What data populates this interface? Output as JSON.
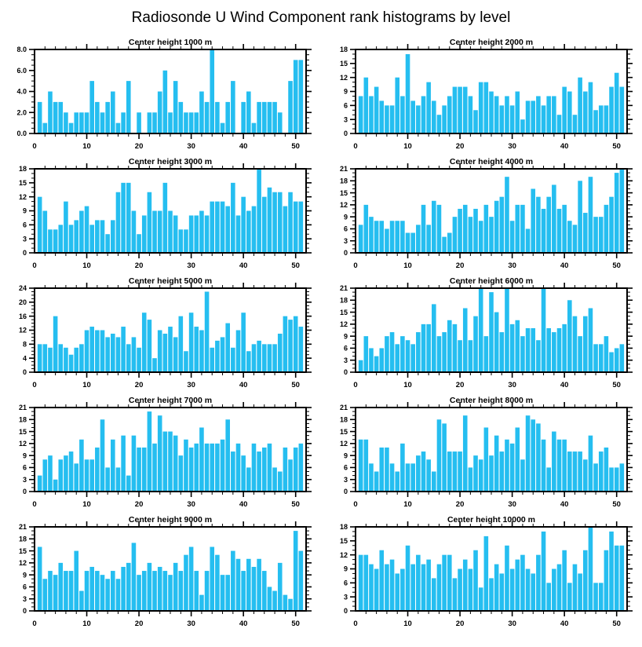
{
  "title": "Radiosonde U Wind Component rank histograms by level",
  "colors": {
    "bar": "#25BEF0",
    "axis": "#000000",
    "background": "#FFFFFF",
    "text": "#000000"
  },
  "axis": {
    "x_range": [
      0,
      52
    ],
    "x_major_ticks": [
      0,
      10,
      20,
      30,
      40,
      50
    ],
    "x_minor_step": 2,
    "rank_start": 1
  },
  "chart_data": [
    {
      "type": "bar",
      "title": "Center height 1000 m",
      "ylim": [
        0,
        8
      ],
      "y_major_step": 2,
      "y_minor_step": 0.5,
      "y_label_decimals": 1,
      "values": [
        3,
        1,
        4,
        3,
        3,
        2,
        1,
        2,
        2,
        2,
        5,
        3,
        2,
        3,
        4,
        1,
        2,
        5,
        0,
        2,
        0,
        2,
        2,
        4,
        6,
        2,
        5,
        3,
        2,
        2,
        2,
        4,
        3,
        8,
        3,
        1,
        3,
        5,
        0,
        3,
        4,
        1,
        3,
        3,
        3,
        3,
        2,
        0,
        5,
        7,
        7
      ]
    },
    {
      "type": "bar",
      "title": "Center height 2000 m",
      "ylim": [
        0,
        18
      ],
      "y_major_step": 3,
      "y_minor_step": 1,
      "y_label_decimals": 0,
      "values": [
        8,
        12,
        8,
        10,
        7,
        6,
        6,
        12,
        8,
        17,
        7,
        6,
        8,
        11,
        7,
        4,
        6,
        8,
        10,
        10,
        10,
        8,
        5,
        11,
        11,
        9,
        8,
        6,
        8,
        6,
        9,
        3,
        7,
        7,
        8,
        6,
        8,
        8,
        4,
        10,
        9,
        4,
        12,
        9,
        11,
        5,
        6,
        6,
        10,
        13,
        10
      ]
    },
    {
      "type": "bar",
      "title": "Center height 3000 m",
      "ylim": [
        0,
        18
      ],
      "y_major_step": 3,
      "y_minor_step": 1,
      "y_label_decimals": 0,
      "values": [
        12,
        9,
        5,
        5,
        6,
        11,
        6,
        7,
        9,
        10,
        6,
        7,
        7,
        4,
        7,
        13,
        15,
        15,
        9,
        4,
        8,
        13,
        9,
        9,
        15,
        9,
        8,
        5,
        5,
        8,
        8,
        9,
        8,
        11,
        11,
        11,
        10,
        15,
        8,
        12,
        9,
        10,
        18,
        12,
        14,
        13,
        13,
        10,
        13,
        11,
        11
      ]
    },
    {
      "type": "bar",
      "title": "Center height 4000 m",
      "ylim": [
        0,
        21
      ],
      "y_major_step": 3,
      "y_minor_step": 1,
      "y_label_decimals": 0,
      "values": [
        7,
        12,
        9,
        8,
        8,
        6,
        8,
        8,
        8,
        5,
        5,
        7,
        12,
        7,
        13,
        12,
        4,
        5,
        9,
        11,
        12,
        9,
        11,
        8,
        12,
        9,
        13,
        14,
        19,
        8,
        12,
        12,
        6,
        16,
        14,
        11,
        14,
        17,
        11,
        12,
        8,
        7,
        18,
        10,
        19,
        9,
        9,
        12,
        14,
        20,
        21
      ]
    },
    {
      "type": "bar",
      "title": "Center height 5000 m",
      "ylim": [
        0,
        24
      ],
      "y_major_step": 4,
      "y_minor_step": 1,
      "y_label_decimals": 0,
      "values": [
        8,
        8,
        7,
        16,
        8,
        7,
        5,
        7,
        8,
        12,
        13,
        12,
        12,
        10,
        11,
        10,
        13,
        8,
        10,
        7,
        17,
        15,
        4,
        12,
        11,
        13,
        10,
        16,
        6,
        17,
        13,
        12,
        23,
        7,
        9,
        10,
        14,
        7,
        12,
        17,
        6,
        8,
        9,
        8,
        8,
        8,
        11,
        16,
        15,
        16,
        13
      ]
    },
    {
      "type": "bar",
      "title": "Center height 6000 m",
      "ylim": [
        0,
        21
      ],
      "y_major_step": 3,
      "y_minor_step": 1,
      "y_label_decimals": 0,
      "values": [
        3,
        9,
        6,
        4,
        6,
        9,
        10,
        7,
        9,
        8,
        7,
        10,
        12,
        12,
        17,
        9,
        10,
        13,
        12,
        8,
        16,
        8,
        14,
        21,
        9,
        20,
        15,
        10,
        21,
        12,
        13,
        9,
        11,
        11,
        8,
        21,
        11,
        10,
        11,
        12,
        18,
        14,
        9,
        14,
        16,
        7,
        7,
        9,
        5,
        6,
        7
      ]
    },
    {
      "type": "bar",
      "title": "Center height 7000 m",
      "ylim": [
        0,
        21
      ],
      "y_major_step": 3,
      "y_minor_step": 1,
      "y_label_decimals": 0,
      "values": [
        4,
        8,
        9,
        3,
        8,
        9,
        10,
        7,
        13,
        8,
        8,
        11,
        18,
        6,
        13,
        6,
        14,
        4,
        14,
        11,
        11,
        20,
        12,
        19,
        15,
        15,
        14,
        9,
        13,
        11,
        12,
        16,
        12,
        12,
        12,
        13,
        18,
        10,
        12,
        9,
        6,
        12,
        10,
        11,
        12,
        6,
        5,
        11,
        8,
        11,
        12
      ]
    },
    {
      "type": "bar",
      "title": "Center height 8000 m",
      "ylim": [
        0,
        21
      ],
      "y_major_step": 3,
      "y_minor_step": 1,
      "y_label_decimals": 0,
      "values": [
        13,
        13,
        7,
        5,
        11,
        11,
        7,
        5,
        12,
        7,
        7,
        9,
        10,
        8,
        5,
        18,
        17,
        10,
        10,
        10,
        19,
        6,
        9,
        8,
        16,
        9,
        14,
        10,
        13,
        12,
        16,
        8,
        19,
        18,
        17,
        13,
        6,
        15,
        13,
        13,
        10,
        10,
        10,
        8,
        14,
        7,
        10,
        11,
        6,
        6,
        7
      ]
    },
    {
      "type": "bar",
      "title": "Center height 9000 m",
      "ylim": [
        0,
        21
      ],
      "y_major_step": 3,
      "y_minor_step": 1,
      "y_label_decimals": 0,
      "values": [
        16,
        8,
        10,
        9,
        12,
        10,
        10,
        15,
        5,
        10,
        11,
        10,
        9,
        8,
        10,
        8,
        11,
        12,
        17,
        9,
        10,
        12,
        10,
        11,
        10,
        9,
        12,
        10,
        14,
        16,
        10,
        4,
        10,
        16,
        14,
        9,
        9,
        15,
        13,
        10,
        13,
        11,
        13,
        10,
        6,
        5,
        12,
        4,
        3,
        20,
        15
      ]
    },
    {
      "type": "bar",
      "title": "Center height 10000 m",
      "ylim": [
        0,
        18
      ],
      "y_major_step": 3,
      "y_minor_step": 1,
      "y_label_decimals": 0,
      "values": [
        12,
        12,
        10,
        9,
        13,
        10,
        11,
        8,
        9,
        14,
        10,
        12,
        10,
        11,
        7,
        10,
        12,
        12,
        7,
        9,
        11,
        9,
        13,
        5,
        16,
        7,
        10,
        8,
        14,
        9,
        11,
        12,
        9,
        8,
        12,
        17,
        6,
        9,
        10,
        13,
        6,
        10,
        8,
        13,
        18,
        6,
        6,
        13,
        17,
        14,
        14
      ]
    }
  ]
}
